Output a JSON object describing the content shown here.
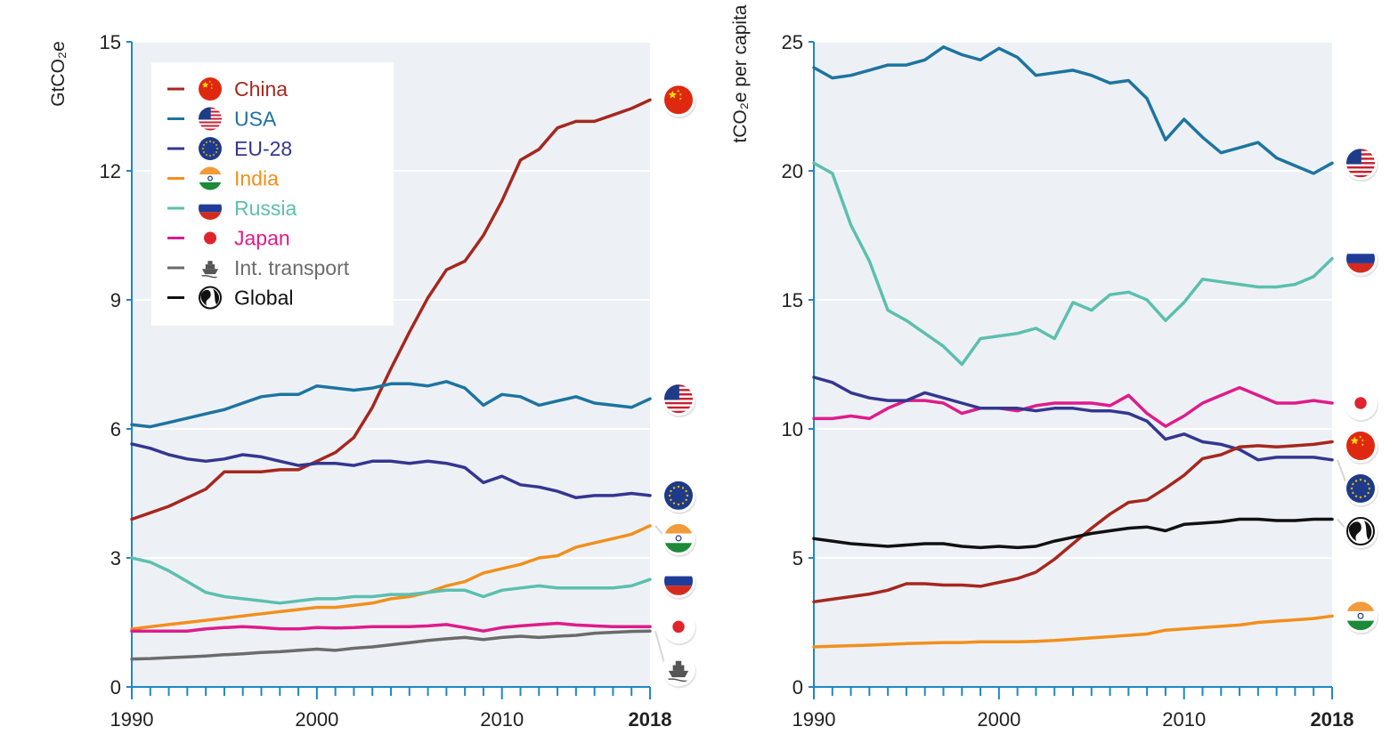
{
  "chart_data": [
    {
      "type": "line",
      "title": "",
      "xlabel": "",
      "ylabel": "GtCO₂e",
      "xlim": [
        1990,
        2018
      ],
      "ylim": [
        0,
        15
      ],
      "xticks": [
        "1990",
        "2000",
        "2010",
        "2018"
      ],
      "yticks": [
        "0",
        "3",
        "6",
        "9",
        "12",
        "15"
      ],
      "grid": true,
      "legend": "top-left",
      "x": [
        1990,
        1991,
        1992,
        1993,
        1994,
        1995,
        1996,
        1997,
        1998,
        1999,
        2000,
        2001,
        2002,
        2003,
        2004,
        2005,
        2006,
        2007,
        2008,
        2009,
        2010,
        2011,
        2012,
        2013,
        2014,
        2015,
        2016,
        2017,
        2018
      ],
      "series": [
        {
          "name": "China",
          "key": "china",
          "color": "#a6271e",
          "values": [
            3.9,
            4.05,
            4.2,
            4.4,
            4.6,
            5.0,
            5.0,
            5.0,
            5.05,
            5.05,
            5.25,
            5.45,
            5.8,
            6.5,
            7.4,
            8.25,
            9.05,
            9.7,
            9.9,
            10.5,
            11.3,
            12.25,
            12.5,
            13.0,
            13.15,
            13.15,
            13.3,
            13.45,
            13.65
          ]
        },
        {
          "name": "USA",
          "key": "usa",
          "color": "#1d74a0",
          "values": [
            6.1,
            6.05,
            6.15,
            6.25,
            6.35,
            6.45,
            6.6,
            6.75,
            6.8,
            6.8,
            7.0,
            6.95,
            6.9,
            6.95,
            7.05,
            7.05,
            7.0,
            7.1,
            6.95,
            6.55,
            6.8,
            6.75,
            6.55,
            6.65,
            6.75,
            6.6,
            6.55,
            6.5,
            6.7
          ]
        },
        {
          "name": "EU-28",
          "key": "eu",
          "color": "#343690",
          "values": [
            5.65,
            5.55,
            5.4,
            5.3,
            5.25,
            5.3,
            5.4,
            5.35,
            5.25,
            5.15,
            5.2,
            5.2,
            5.15,
            5.25,
            5.25,
            5.2,
            5.25,
            5.2,
            5.1,
            4.75,
            4.9,
            4.7,
            4.65,
            4.55,
            4.4,
            4.45,
            4.45,
            4.5,
            4.45
          ]
        },
        {
          "name": "India",
          "key": "india",
          "color": "#f28f1c",
          "values": [
            1.35,
            1.4,
            1.45,
            1.5,
            1.55,
            1.6,
            1.65,
            1.7,
            1.75,
            1.8,
            1.85,
            1.85,
            1.9,
            1.95,
            2.05,
            2.1,
            2.2,
            2.35,
            2.45,
            2.65,
            2.75,
            2.85,
            3.0,
            3.05,
            3.25,
            3.35,
            3.45,
            3.55,
            3.75
          ]
        },
        {
          "name": "Russia",
          "key": "russia",
          "color": "#5cbfae",
          "values": [
            3.0,
            2.9,
            2.7,
            2.45,
            2.2,
            2.1,
            2.05,
            2.0,
            1.95,
            2.0,
            2.05,
            2.05,
            2.1,
            2.1,
            2.15,
            2.15,
            2.2,
            2.25,
            2.25,
            2.1,
            2.25,
            2.3,
            2.35,
            2.3,
            2.3,
            2.3,
            2.3,
            2.35,
            2.5
          ]
        },
        {
          "name": "Japan",
          "key": "japan",
          "color": "#df1b8c",
          "values": [
            1.3,
            1.3,
            1.3,
            1.3,
            1.35,
            1.38,
            1.4,
            1.38,
            1.35,
            1.35,
            1.38,
            1.37,
            1.38,
            1.4,
            1.4,
            1.4,
            1.42,
            1.45,
            1.38,
            1.3,
            1.38,
            1.42,
            1.45,
            1.48,
            1.44,
            1.42,
            1.4,
            1.4,
            1.4
          ]
        },
        {
          "name": "Int. transport",
          "key": "transport",
          "color": "#6b6b6b",
          "values": [
            0.65,
            0.66,
            0.68,
            0.7,
            0.72,
            0.75,
            0.77,
            0.8,
            0.82,
            0.85,
            0.88,
            0.85,
            0.9,
            0.93,
            0.98,
            1.03,
            1.08,
            1.12,
            1.15,
            1.1,
            1.15,
            1.18,
            1.15,
            1.18,
            1.2,
            1.25,
            1.27,
            1.29,
            1.3
          ]
        }
      ]
    },
    {
      "type": "line",
      "title": "",
      "xlabel": "",
      "ylabel": "tCO₂e per capita",
      "xlim": [
        1990,
        2018
      ],
      "ylim": [
        0,
        25
      ],
      "xticks": [
        "1990",
        "2000",
        "2010",
        "2018"
      ],
      "yticks": [
        "0",
        "5",
        "10",
        "15",
        "20",
        "25"
      ],
      "grid": true,
      "x": [
        1990,
        1991,
        1992,
        1993,
        1994,
        1995,
        1996,
        1997,
        1998,
        1999,
        2000,
        2001,
        2002,
        2003,
        2004,
        2005,
        2006,
        2007,
        2008,
        2009,
        2010,
        2011,
        2012,
        2013,
        2014,
        2015,
        2016,
        2017,
        2018
      ],
      "series": [
        {
          "name": "USA",
          "key": "usa",
          "color": "#1d74a0",
          "values": [
            24.0,
            23.6,
            23.7,
            23.9,
            24.1,
            24.1,
            24.3,
            24.8,
            24.5,
            24.3,
            24.75,
            24.4,
            23.7,
            23.8,
            23.9,
            23.7,
            23.4,
            23.5,
            22.8,
            21.2,
            22.0,
            21.3,
            20.7,
            20.9,
            21.1,
            20.5,
            20.2,
            19.9,
            20.3
          ]
        },
        {
          "name": "Russia",
          "key": "russia",
          "color": "#5cbfae",
          "values": [
            20.3,
            19.9,
            17.9,
            16.5,
            14.6,
            14.2,
            13.7,
            13.2,
            12.5,
            13.5,
            13.6,
            13.7,
            13.9,
            13.5,
            14.9,
            14.6,
            15.2,
            15.3,
            15.0,
            14.2,
            14.9,
            15.8,
            15.7,
            15.6,
            15.5,
            15.5,
            15.6,
            15.9,
            16.6
          ]
        },
        {
          "name": "Japan",
          "key": "japan",
          "color": "#df1b8c",
          "values": [
            10.4,
            10.4,
            10.5,
            10.4,
            10.8,
            11.1,
            11.1,
            11.0,
            10.6,
            10.8,
            10.8,
            10.7,
            10.9,
            11.0,
            11.0,
            11.0,
            10.9,
            11.3,
            10.6,
            10.1,
            10.5,
            11.0,
            11.3,
            11.6,
            11.3,
            11.0,
            11.0,
            11.1,
            11.0
          ]
        },
        {
          "name": "EU-28",
          "key": "eu",
          "color": "#343690",
          "values": [
            12.0,
            11.8,
            11.4,
            11.2,
            11.1,
            11.1,
            11.4,
            11.2,
            11.0,
            10.8,
            10.8,
            10.8,
            10.7,
            10.8,
            10.8,
            10.7,
            10.7,
            10.6,
            10.3,
            9.6,
            9.8,
            9.5,
            9.4,
            9.2,
            8.8,
            8.9,
            8.9,
            8.9,
            8.8
          ]
        },
        {
          "name": "China",
          "key": "china",
          "color": "#a6271e",
          "values": [
            3.3,
            3.4,
            3.5,
            3.6,
            3.75,
            4.0,
            4.0,
            3.95,
            3.95,
            3.9,
            4.05,
            4.2,
            4.45,
            4.95,
            5.55,
            6.15,
            6.7,
            7.15,
            7.25,
            7.7,
            8.2,
            8.85,
            9.0,
            9.3,
            9.35,
            9.3,
            9.35,
            9.4,
            9.5
          ]
        },
        {
          "name": "Global",
          "key": "global",
          "color": "#111111",
          "values": [
            5.75,
            5.65,
            5.55,
            5.5,
            5.45,
            5.5,
            5.55,
            5.55,
            5.45,
            5.4,
            5.45,
            5.4,
            5.45,
            5.65,
            5.8,
            5.95,
            6.05,
            6.15,
            6.2,
            6.05,
            6.3,
            6.35,
            6.4,
            6.5,
            6.5,
            6.45,
            6.45,
            6.5,
            6.5
          ]
        },
        {
          "name": "India",
          "key": "india",
          "color": "#f28f1c",
          "values": [
            1.55,
            1.58,
            1.6,
            1.62,
            1.65,
            1.68,
            1.7,
            1.72,
            1.72,
            1.75,
            1.75,
            1.75,
            1.77,
            1.8,
            1.85,
            1.9,
            1.95,
            2.0,
            2.05,
            2.2,
            2.25,
            2.3,
            2.35,
            2.4,
            2.5,
            2.55,
            2.6,
            2.65,
            2.75
          ]
        }
      ]
    }
  ],
  "legend": {
    "items": [
      {
        "label": "China",
        "color": "#a6271e",
        "icon": "china-flag-icon"
      },
      {
        "label": "USA",
        "color": "#1d74a0",
        "icon": "usa-flag-icon"
      },
      {
        "label": "EU-28",
        "color": "#343690",
        "icon": "eu-flag-icon"
      },
      {
        "label": "India",
        "color": "#f28f1c",
        "icon": "india-flag-icon"
      },
      {
        "label": "Russia",
        "color": "#5cbfae",
        "icon": "russia-flag-icon"
      },
      {
        "label": "Japan",
        "color": "#df1b8c",
        "icon": "japan-flag-icon"
      },
      {
        "label": "Int. transport",
        "color": "#6b6b6b",
        "icon": "ship-icon"
      },
      {
        "label": "Global",
        "color": "#111111",
        "icon": "globe-icon"
      }
    ]
  }
}
